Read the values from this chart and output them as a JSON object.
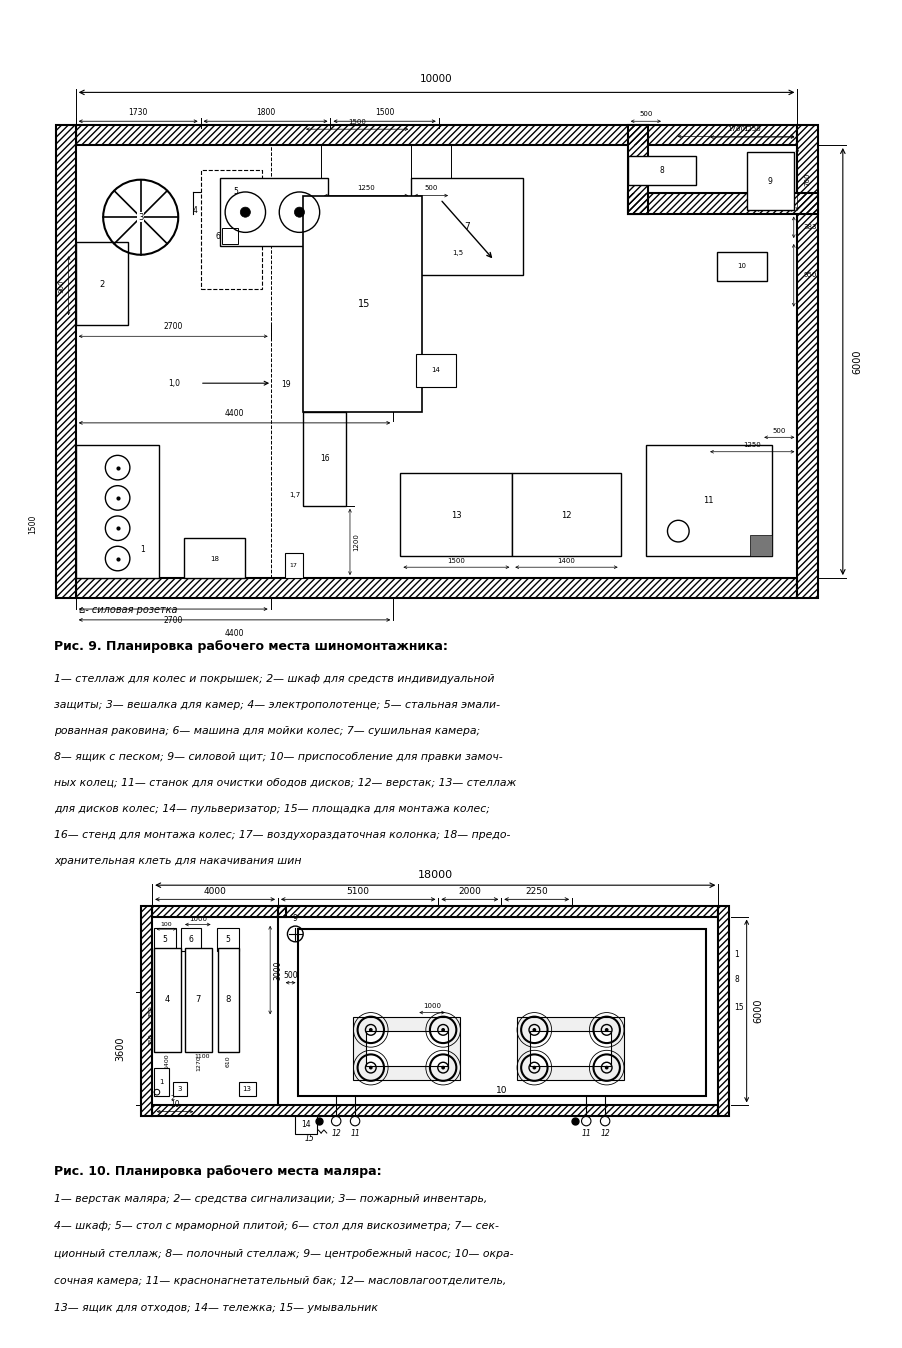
{
  "bg_color": "#ffffff",
  "fig1": {
    "caption_title": "Рис. 9. Планировка рабочего места шиномонтажника:",
    "caption_lines": [
      "1— стеллаж для колес и покрышек; 2— шкаф для средств индивидуальной",
      "защиты; 3— вешалка для камер; 4— электрополотенце; 5— стальная эмали-",
      "рованная раковина; 6— машина для мойки колес; 7— сушильная камера;",
      "8— ящик с песком; 9— силовой щит; 10— приспособление для правки замоч-",
      "ных колец; 11— станок для очистки ободов дисков; 12— верстак; 13— стеллаж",
      "для дисков колес; 14— пульверизатор; 15— площадка для монтажа колес;",
      "16— стенд для монтажа колес; 17— воздухораздаточная колонка; 18— предо-",
      "хранительная клеть для накачивания шин"
    ]
  },
  "fig2": {
    "caption_title": "Рис. 10. Планировка рабочего места маляра:",
    "caption_lines": [
      "1— верстак маляра; 2— средства сигнализации; 3— пожарный инвентарь,",
      "4— шкаф; 5— стол с мраморной плитой; 6— стол для вискозиметра; 7— сек-",
      "ционный стеллаж; 8— полочный стеллаж; 9— центробежный насос; 10— окра-",
      "сочная камера; 11— краснонагнетательный бак; 12— масловлагоотделитель,",
      "13— ящик для отходов; 14— тележка; 15— умывальник"
    ]
  }
}
